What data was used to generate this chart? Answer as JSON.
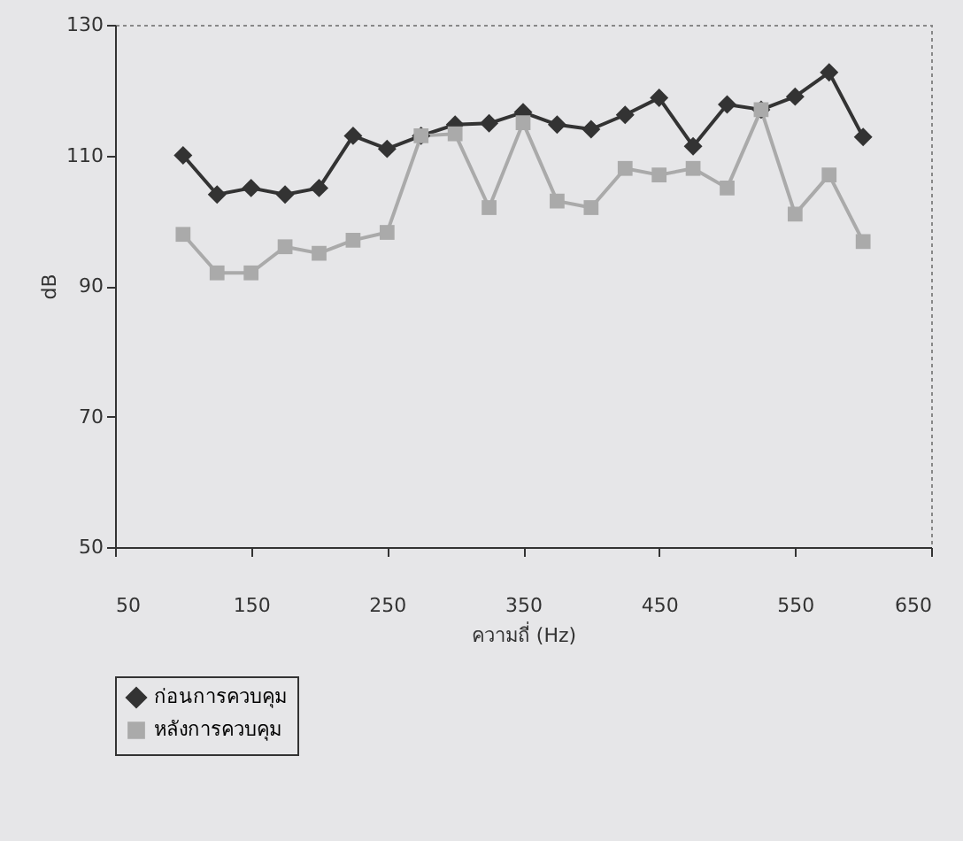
{
  "chart_data": {
    "type": "line",
    "xlabel": "ความถี่ (Hz)",
    "ylabel": "dB",
    "x": [
      100,
      125,
      150,
      175,
      200,
      225,
      250,
      275,
      300,
      325,
      350,
      375,
      400,
      425,
      450,
      475,
      500,
      525,
      550,
      575,
      600
    ],
    "series": [
      {
        "name": "ก่อนการควบคุม",
        "color": "#333333",
        "marker": "diamond",
        "values": [
          110,
          104,
          105,
          104,
          105,
          113,
          111,
          113,
          114.7,
          114.9,
          116.6,
          114.7,
          114,
          116.2,
          118.8,
          111.4,
          117.8,
          117,
          119,
          122.7,
          112.8
        ]
      },
      {
        "name": "หลังการควบคุม",
        "color": "#aaaaaa",
        "marker": "square",
        "values": [
          97.9,
          92,
          92,
          96,
          95,
          97,
          98.2,
          113,
          113.3,
          102,
          115,
          103,
          102,
          108,
          107,
          108,
          105,
          117,
          101,
          107,
          96.8
        ]
      }
    ],
    "xlim": [
      50,
      650
    ],
    "xticks": [
      50,
      150,
      250,
      350,
      450,
      550,
      650
    ],
    "ylim": [
      50,
      130
    ],
    "yticks": [
      50,
      70,
      90,
      110,
      130
    ],
    "grid": false,
    "legend": "bottom",
    "line_style": "solid"
  }
}
